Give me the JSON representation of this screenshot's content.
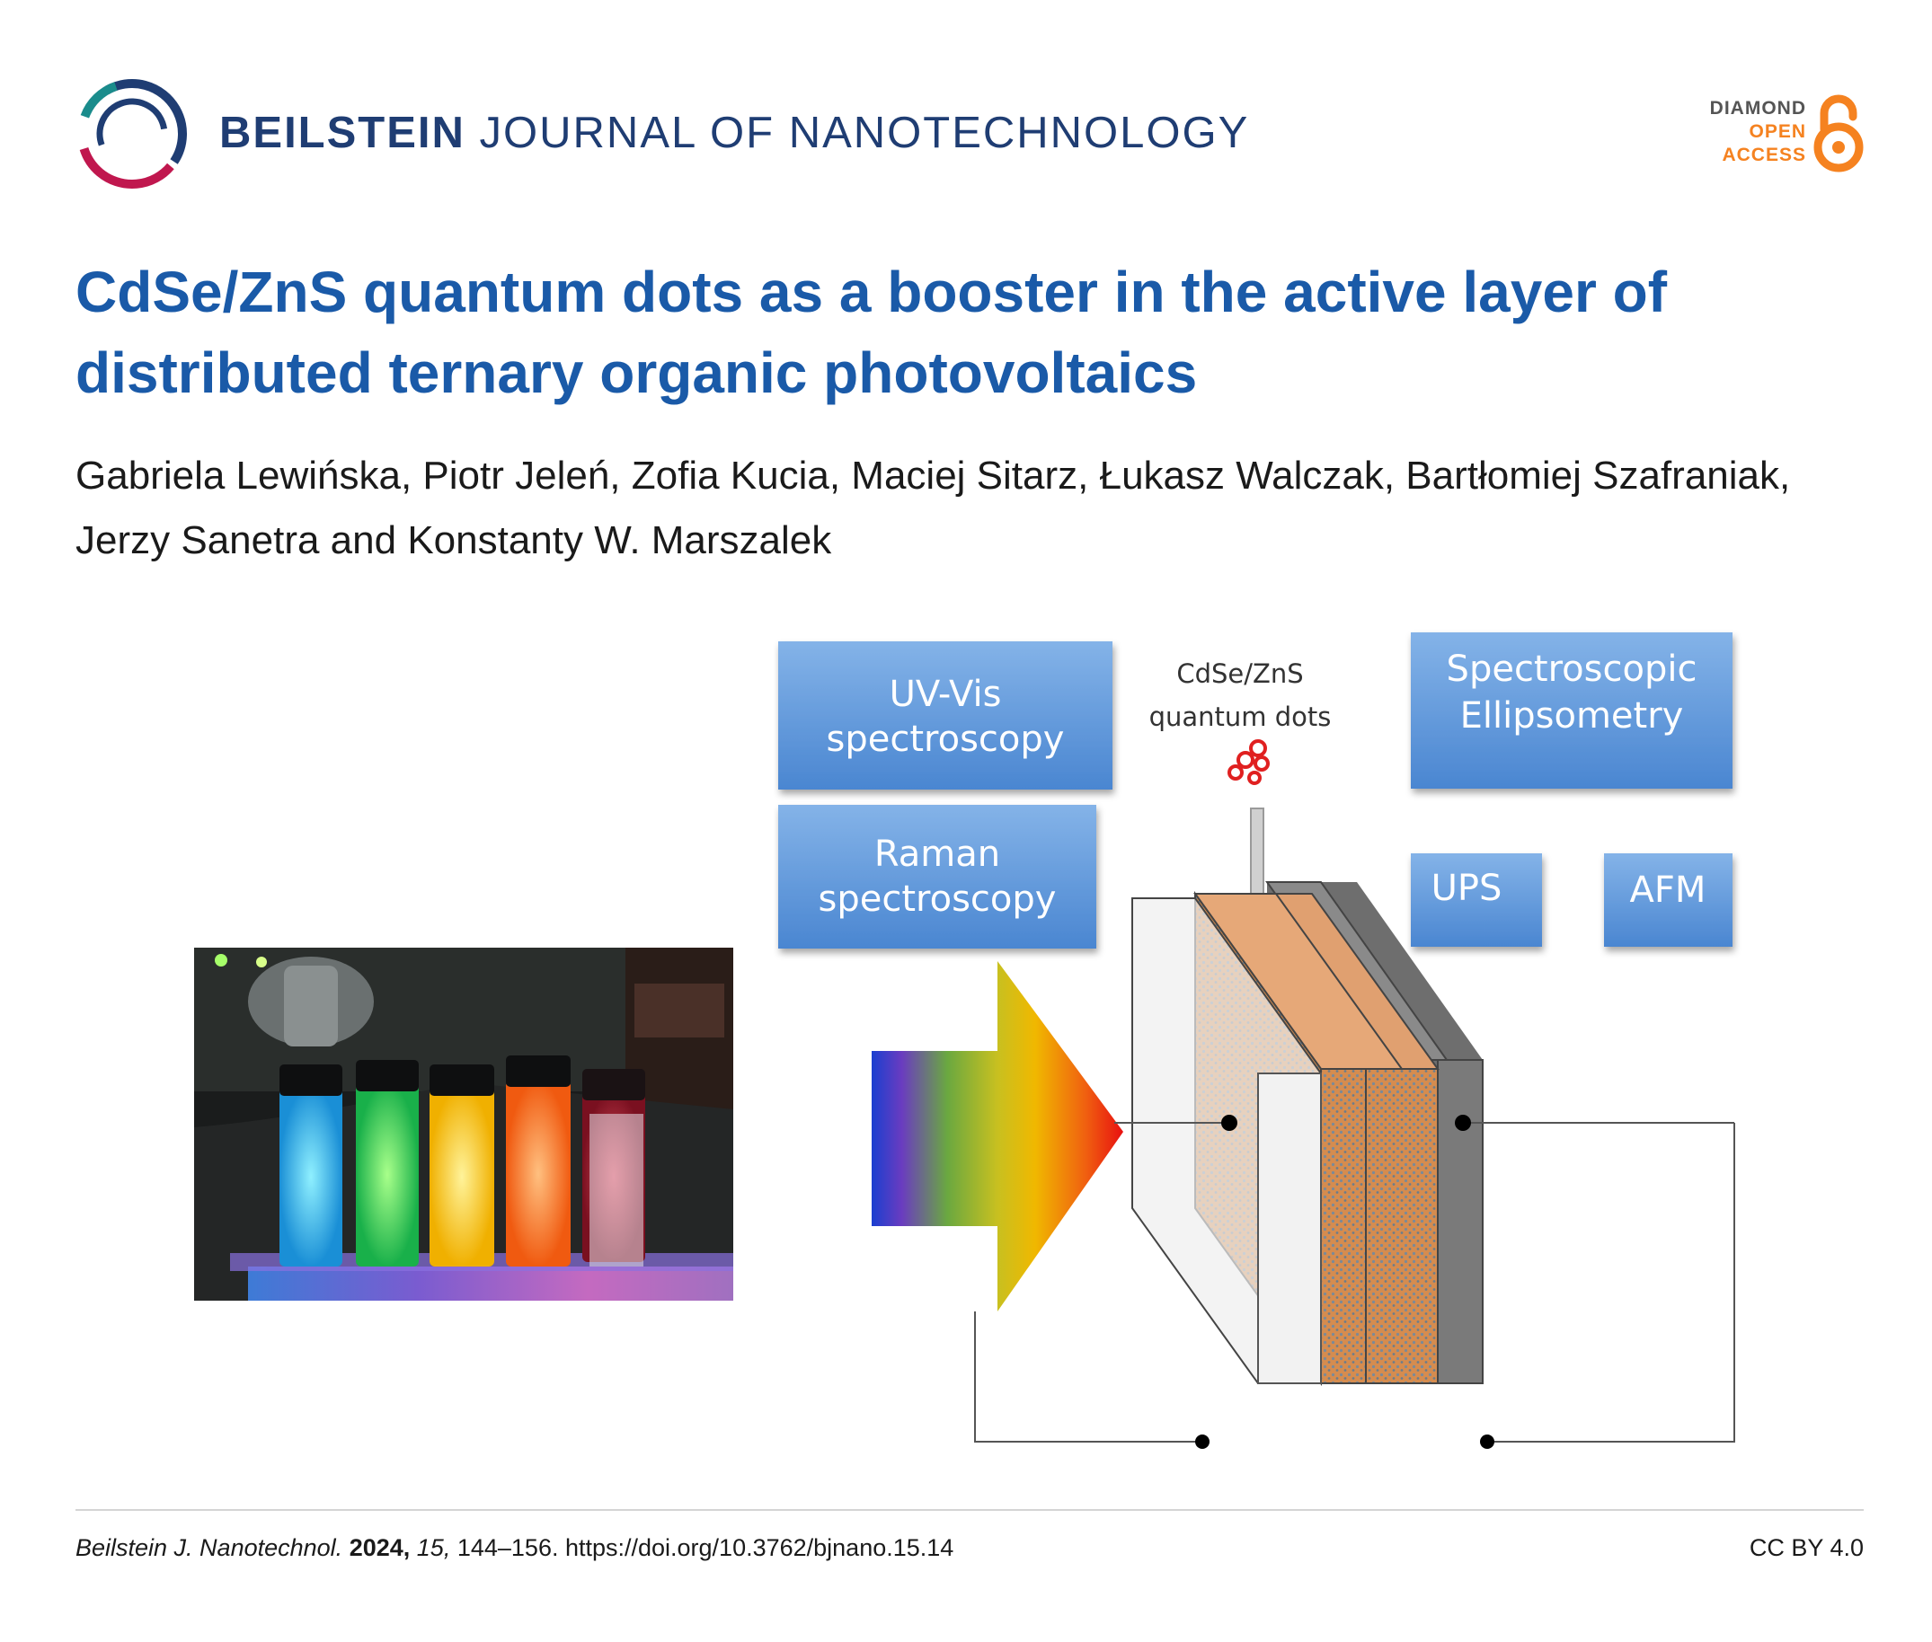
{
  "header": {
    "journal_strong": "BEILSTEIN",
    "journal_rest": "JOURNAL OF NANOTECHNOLOGY",
    "open_access": {
      "line1": "DIAMOND",
      "line2": "OPEN",
      "line3": "ACCESS",
      "icon": "open-lock-icon"
    },
    "colors": {
      "journal": "#1f3d73",
      "accent": "#f58220",
      "title": "#1a5aa8"
    }
  },
  "article": {
    "title": "CdSe/ZnS quantum dots as a booster in the active layer of distributed ternary organic photovoltaics",
    "authors": "Gabriela Lewińska, Piotr Jeleń, Zofia Kucia, Maciej Sitarz, Łukasz Walczak, Bartłomiej Szafraniak, Jerzy Sanetra and Konstanty W. Marszalek"
  },
  "graphical_abstract": {
    "photo": "vials-of-fluorescent-quantum-dots",
    "boxes": {
      "uvvis_line1": "UV-Vis",
      "uvvis_line2": "spectroscopy",
      "raman_line1": "Raman",
      "raman_line2": "spectroscopy",
      "se_line1": "Spectroscopic",
      "se_line2": "Ellipsometry",
      "ups": "UPS",
      "afm": "AFM"
    },
    "qd_line1": "CdSe/ZnS",
    "qd_line2": "quantum dots"
  },
  "footer": {
    "journal_abbrev": "Beilstein J. Nanotechnol.",
    "year": "2024,",
    "volume": "15,",
    "pages_doi": "144–156. https://doi.org/10.3762/bjnano.15.14",
    "license": "CC BY 4.0"
  }
}
